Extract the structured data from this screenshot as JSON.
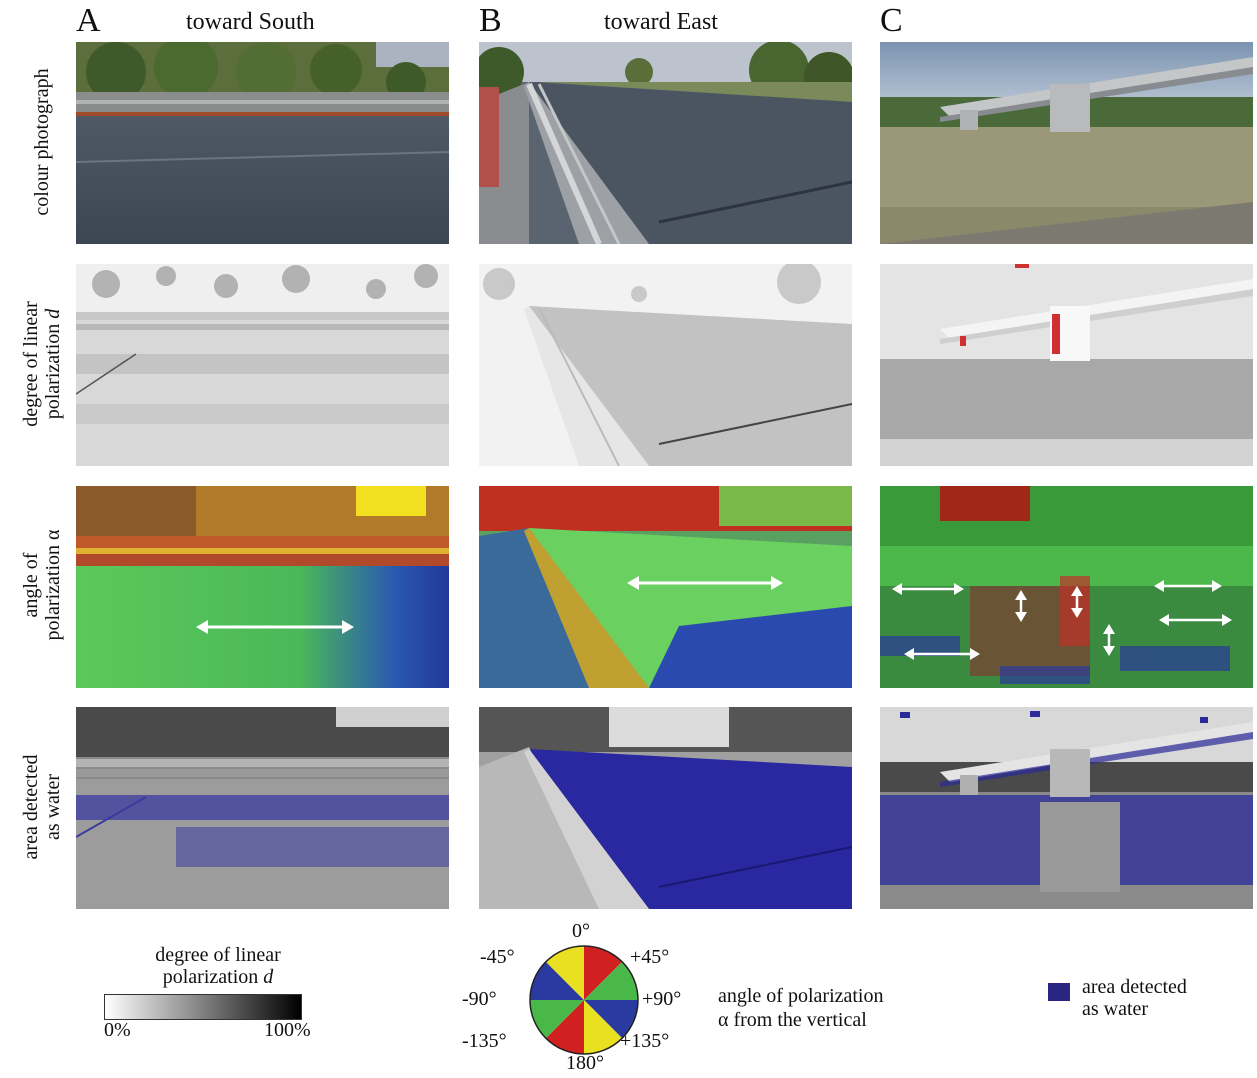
{
  "columns": [
    {
      "letter": "A",
      "title": "toward South"
    },
    {
      "letter": "B",
      "title": "toward East"
    },
    {
      "letter": "C",
      "title": ""
    }
  ],
  "rows": [
    {
      "line1": "colour photograph",
      "line2": ""
    },
    {
      "line1": "degree of linear",
      "line2": "polarization",
      "var": "d"
    },
    {
      "line1": "angle of",
      "line2": "polarization",
      "var": "α"
    },
    {
      "line1": "area detected",
      "line2": "as water"
    }
  ],
  "legend_dop": {
    "title1": "degree of linear",
    "title2": "polarization",
    "var": "d",
    "min_label": "0%",
    "max_label": "100%"
  },
  "legend_aop": {
    "angles": {
      "top": "0°",
      "tl": "-45°",
      "tr": "+45°",
      "left": "-90°",
      "right": "+90°",
      "bl": "-135°",
      "br": "+135°",
      "bottom": "180°"
    },
    "text1": "angle of polarization",
    "text2": "α from the vertical"
  },
  "legend_water": {
    "text1": "area detected",
    "text2": "as water",
    "color": "#2a2580"
  }
}
